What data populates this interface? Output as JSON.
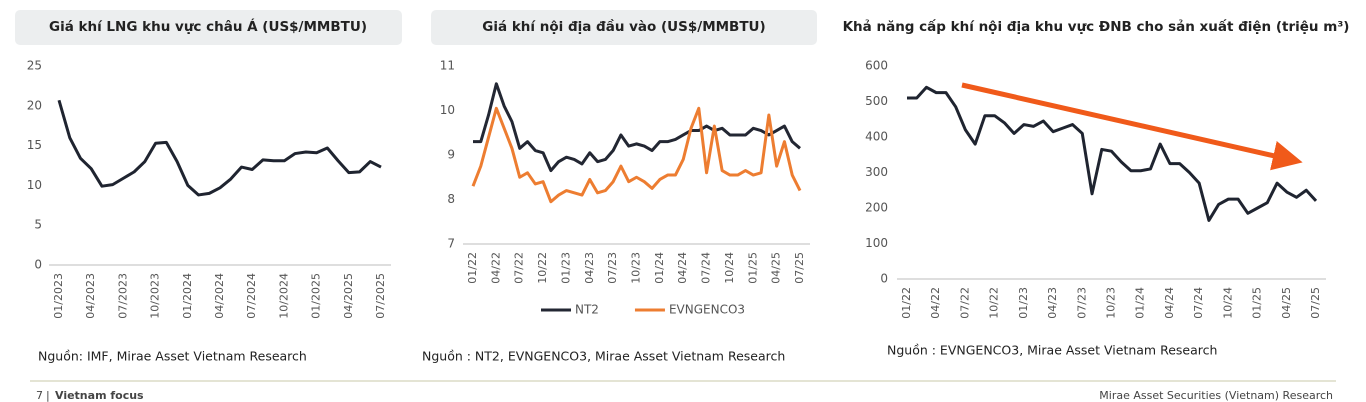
{
  "chart_data": [
    {
      "type": "line",
      "title": "Giá khí LNG khu vực châu Á (US$/MMBTU)",
      "categories": [
        "01/2023",
        null,
        null,
        "04/2023",
        null,
        null,
        "07/2023",
        null,
        null,
        "10/2023",
        null,
        null,
        "01/2024",
        null,
        null,
        "04/2024",
        null,
        null,
        "07/2024",
        null,
        null,
        "10/2024",
        null,
        null,
        "01/2025",
        null,
        null,
        "04/2025",
        null,
        null,
        "07/2025"
      ],
      "values": [
        20.7,
        16,
        13.4,
        12.1,
        9.9,
        10.1,
        10.9,
        11.7,
        13,
        15.3,
        15.4,
        13,
        10,
        8.8,
        9,
        9.7,
        10.8,
        12.3,
        12,
        13.2,
        13.1,
        13.1,
        14,
        14.2,
        14.1,
        14.7,
        13.1,
        11.6,
        11.7,
        13,
        12.3
      ],
      "color": "#1f2430",
      "ylim": [
        0,
        25
      ],
      "yticks": [
        0,
        5,
        10,
        15,
        20,
        25
      ]
    },
    {
      "type": "line",
      "title": "Giá khí nội địa đầu vào (US$/MMBTU)",
      "categories": [
        "01/22",
        null,
        null,
        "04/22",
        null,
        null,
        "07/22",
        null,
        null,
        "10/22",
        null,
        null,
        "01/23",
        null,
        null,
        "04/23",
        null,
        null,
        "07/23",
        null,
        null,
        "10/23",
        null,
        null,
        "01/24",
        null,
        null,
        "04/24",
        null,
        null,
        "07/24",
        null,
        null,
        "10/24",
        null,
        null,
        "01/25",
        null,
        null,
        "04/25",
        null,
        null,
        "07/25"
      ],
      "series": [
        {
          "name": "NT2",
          "color": "#232733",
          "values": [
            9.3,
            9.3,
            9.9,
            10.6,
            10.1,
            9.75,
            9.15,
            9.3,
            9.1,
            9.05,
            8.65,
            8.85,
            8.95,
            8.9,
            8.8,
            9.05,
            8.85,
            8.9,
            9.1,
            9.45,
            9.2,
            9.25,
            9.2,
            9.1,
            9.3,
            9.3,
            9.35,
            9.45,
            9.55,
            9.55,
            9.65,
            9.55,
            9.6,
            9.45,
            9.45,
            9.45,
            9.6,
            9.55,
            9.45,
            9.55,
            9.65,
            9.3,
            9.15
          ]
        },
        {
          "name": "EVNGENCO3",
          "color": "#ed7d31",
          "values": [
            8.3,
            8.75,
            9.4,
            10.05,
            9.6,
            9.15,
            8.5,
            8.6,
            8.35,
            8.4,
            7.95,
            8.1,
            8.2,
            8.15,
            8.1,
            8.45,
            8.15,
            8.2,
            8.4,
            8.75,
            8.4,
            8.5,
            8.4,
            8.25,
            8.45,
            8.55,
            8.55,
            8.9,
            9.6,
            10.05,
            8.6,
            9.65,
            8.65,
            8.55,
            8.55,
            8.65,
            8.55,
            8.6,
            9.9,
            8.75,
            9.3,
            8.55,
            8.2
          ]
        }
      ],
      "ylim": [
        7,
        11
      ],
      "yticks": [
        7,
        8,
        9,
        10,
        11
      ]
    },
    {
      "type": "line",
      "title": "Khả năng cấp khí nội địa khu vực ĐNB cho sản xuất điện (triệu m³)",
      "categories": [
        "01/22",
        null,
        null,
        "04/22",
        null,
        null,
        "07/22",
        null,
        null,
        "10/22",
        null,
        null,
        "01/23",
        null,
        null,
        "04/23",
        null,
        null,
        "07/23",
        null,
        null,
        "10/23",
        null,
        null,
        "01/24",
        null,
        null,
        "04/24",
        null,
        null,
        "07/24",
        null,
        null,
        "10/24",
        null,
        null,
        "01/25",
        null,
        null,
        "04/25",
        null,
        null,
        "07/25"
      ],
      "values": [
        510,
        510,
        540,
        525,
        525,
        485,
        420,
        380,
        460,
        460,
        440,
        410,
        435,
        430,
        445,
        415,
        425,
        435,
        410,
        240,
        365,
        360,
        330,
        305,
        305,
        310,
        380,
        325,
        325,
        300,
        270,
        165,
        210,
        225,
        225,
        185,
        200,
        215,
        270,
        245,
        230,
        250,
        220
      ],
      "color": "#1f2430",
      "ylim": [
        0,
        600
      ],
      "yticks": [
        0,
        100,
        200,
        300,
        400,
        500,
        600
      ]
    }
  ],
  "sources": [
    "Nguồn: IMF, Mirae Asset Vietnam Research",
    "Nguồn : NT2, EVNGENCO3, Mirae Asset Vietnam Research",
    "Nguồn : EVNGENCO3, Mirae Asset Vietnam Research"
  ],
  "footer": {
    "page": "7",
    "separator": "|",
    "section": "Vietnam focus",
    "publisher": "Mirae Asset Securities (Vietnam) Research"
  }
}
